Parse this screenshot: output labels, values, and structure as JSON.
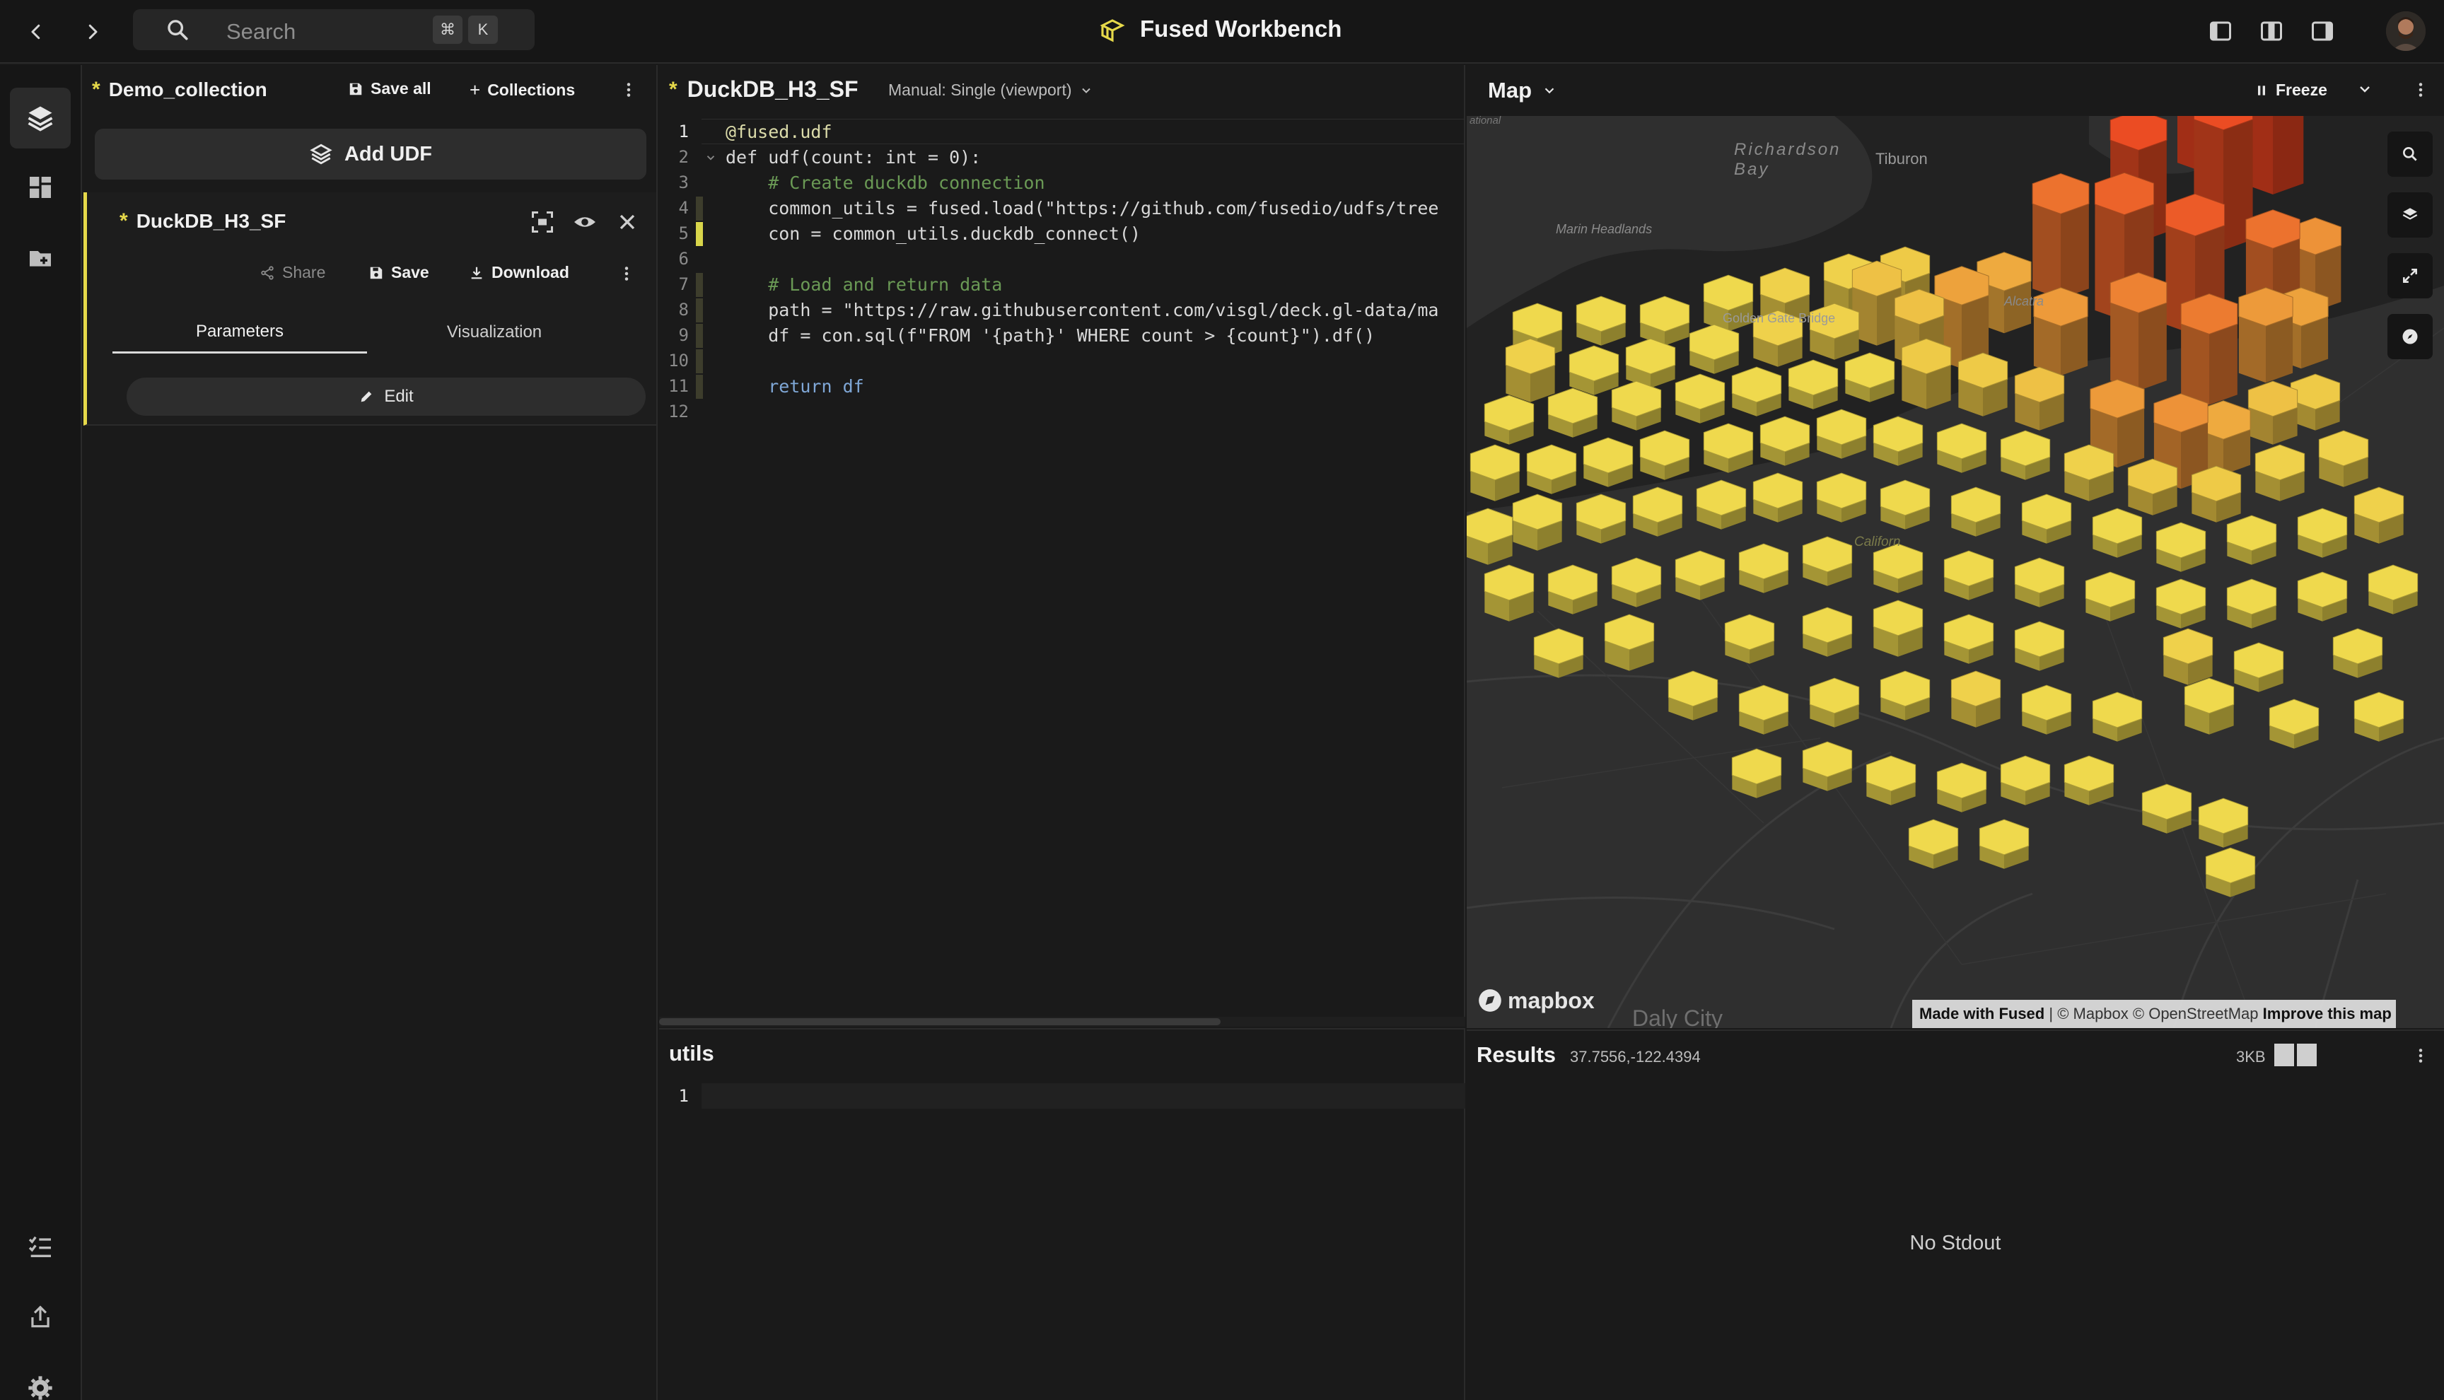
{
  "topbar": {
    "search_placeholder": "Search",
    "shortcut_cmd": "⌘",
    "shortcut_key": "K",
    "app_title": "Fused Workbench"
  },
  "collection": {
    "name": "Demo_collection",
    "save_all": "Save all",
    "collections": "Collections",
    "add_udf": "Add UDF",
    "udf_name": "DuckDB_H3_SF",
    "share": "Share",
    "save": "Save",
    "download": "Download",
    "tabs": [
      "Parameters",
      "Visualization"
    ],
    "active_tab": "Parameters",
    "edit": "Edit"
  },
  "editor": {
    "udf_name": "DuckDB_H3_SF",
    "mode": "Manual: Single (viewport)",
    "line_numbers": [
      "1",
      "2",
      "3",
      "4",
      "5",
      "6",
      "7",
      "8",
      "9",
      "10",
      "11",
      "12"
    ],
    "lines": [
      "@fused.udf",
      "def udf(count: int = 0):",
      "    # Create duckdb connection",
      "    common_utils = fused.load(\"https://github.com/fusedio/udfs/tree",
      "    con = common_utils.duckdb_connect()",
      "",
      "    # Load and return data",
      "    path = \"https://raw.githubusercontent.com/visgl/deck.gl-data/ma",
      "    df = con.sql(f\"FROM '{path}' WHERE count > {count}\").df()",
      "",
      "    return df",
      ""
    ]
  },
  "utils": {
    "title": "utils",
    "line_numbers": [
      "1"
    ]
  },
  "map": {
    "title": "Map",
    "freeze": "Freeze",
    "labels": {
      "richardson_bay": "Richardson Bay",
      "tiburon": "Tiburon",
      "marin_headlands": "Marin Headlands",
      "golden_gate_bridge": "Golden Gate Bridge",
      "alcatraz": "Alcatra",
      "california": "Californ",
      "daly_city": "Daly City",
      "national": "ational"
    },
    "mapbox_logo": "mapbox",
    "attribution_made": "Made with Fused",
    "attribution_sep": " | © Mapbox © OpenStreetMap ",
    "attribution_improve": "Improve this map"
  },
  "results": {
    "title": "Results",
    "coords": "37.7556,-122.4394",
    "size": "3KB",
    "stdout": "No Stdout"
  },
  "colors": {
    "accent_yellow": "#e6d94a",
    "hex_low": "#e4d64b",
    "hex_high": "#e0401f"
  }
}
